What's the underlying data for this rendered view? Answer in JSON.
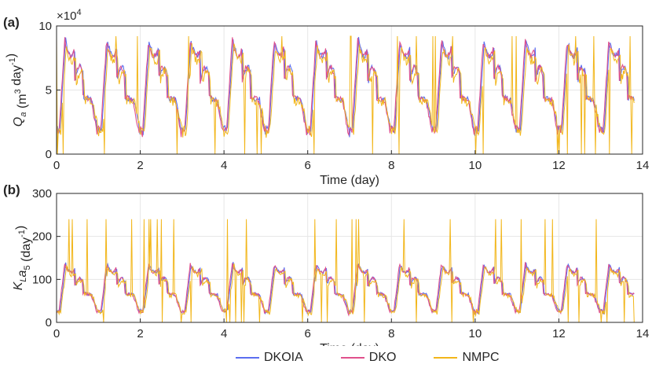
{
  "chart_data": [
    {
      "type": "line",
      "panel_label": "(a)",
      "ylabel": "Q_a (m^3 day^-1)",
      "y_exponent_label": "×10",
      "y_exponent_power": "4",
      "xlabel": "Time (day)",
      "xlim": [
        0,
        14
      ],
      "ylim": [
        0,
        10
      ],
      "x_ticks": [
        0,
        2,
        4,
        6,
        8,
        10,
        12,
        14
      ],
      "y_ticks": [
        0,
        5,
        10
      ],
      "grid": true,
      "daily_peak_value": 9.2,
      "daily_low_value": 1.5,
      "series": [
        {
          "name": "DKOIA",
          "color": "#5b6ef0"
        },
        {
          "name": "DKO",
          "color": "#e0508c"
        },
        {
          "name": "NMPC",
          "color": "#f2b61a"
        }
      ]
    },
    {
      "type": "line",
      "panel_label": "(b)",
      "ylabel": "K_L a_5 (day^-1)",
      "xlabel": "Time (day)",
      "xlim": [
        0,
        14
      ],
      "ylim": [
        0,
        300
      ],
      "x_ticks": [
        0,
        2,
        4,
        6,
        8,
        10,
        12,
        14
      ],
      "y_ticks": [
        0,
        100,
        200,
        300
      ],
      "grid": true,
      "daily_peak_value": 140,
      "daily_low_value": 20,
      "nmpc_saturation_value": 240,
      "series": [
        {
          "name": "DKOIA",
          "color": "#5b6ef0"
        },
        {
          "name": "DKO",
          "color": "#e0508c"
        },
        {
          "name": "NMPC",
          "color": "#f2b61a"
        }
      ]
    }
  ],
  "legend": {
    "entries": [
      {
        "label": "DKOIA",
        "color": "#5b6ef0"
      },
      {
        "label": "DKO",
        "color": "#e0508c"
      },
      {
        "label": "NMPC",
        "color": "#f2b61a"
      }
    ]
  }
}
